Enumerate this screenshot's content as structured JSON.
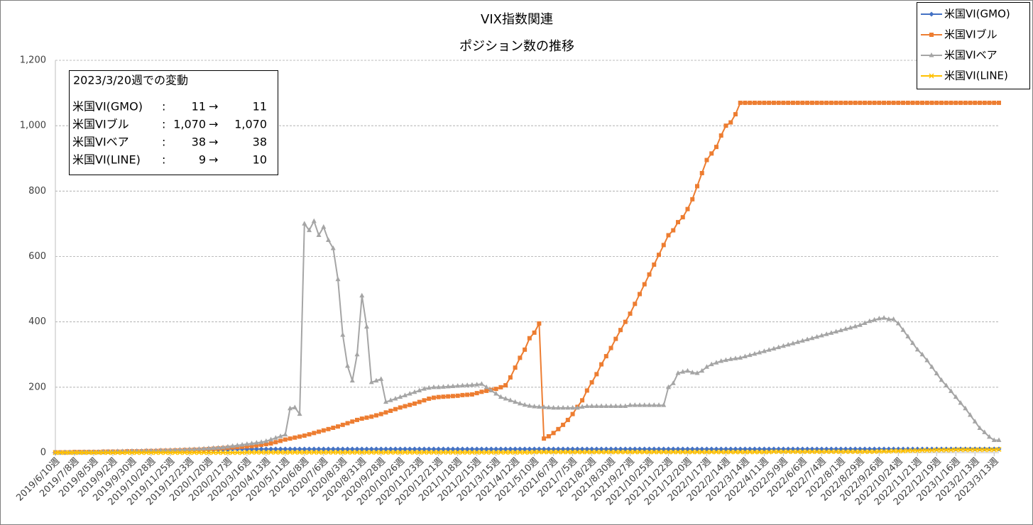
{
  "chart_data": {
    "type": "line",
    "title": "VIX指数関連",
    "subtitle": "ポジション数の推移",
    "categories": [
      "2019/6/10週",
      null,
      null,
      null,
      "2019/7/8週",
      null,
      null,
      null,
      "2019/8/5週",
      null,
      null,
      null,
      "2019/9/2週",
      null,
      null,
      null,
      "2019/9/30週",
      null,
      null,
      null,
      "2019/10/28週",
      null,
      null,
      null,
      "2019/11/25週",
      null,
      null,
      null,
      "2019/12/23週",
      null,
      null,
      null,
      "2020/1/20週",
      null,
      null,
      null,
      "2020/2/17週",
      null,
      null,
      null,
      "2020/3/16週",
      null,
      null,
      null,
      "2020/4/13週",
      null,
      null,
      null,
      "2020/5/11週",
      null,
      null,
      null,
      "2020/6/8週",
      null,
      null,
      null,
      "2020/7/6週",
      null,
      null,
      null,
      "2020/8/3週",
      null,
      null,
      null,
      "2020/8/31週",
      null,
      null,
      null,
      "2020/9/28週",
      null,
      null,
      null,
      "2020/10/26週",
      null,
      null,
      null,
      "2020/11/23週",
      null,
      null,
      null,
      "2020/12/21週",
      null,
      null,
      null,
      "2021/1/18週",
      null,
      null,
      null,
      "2021/2/15週",
      null,
      null,
      null,
      "2021/3/15週",
      null,
      null,
      null,
      "2021/4/12週",
      null,
      null,
      null,
      "2021/5/10週",
      null,
      null,
      null,
      "2021/6/7週",
      null,
      null,
      null,
      "2021/7/5週",
      null,
      null,
      null,
      "2021/8/2週",
      null,
      null,
      null,
      "2021/8/30週",
      null,
      null,
      null,
      "2021/9/27週",
      null,
      null,
      null,
      "2021/10/25週",
      null,
      null,
      null,
      "2021/11/22週",
      null,
      null,
      null,
      "2021/12/20週",
      null,
      null,
      null,
      "2022/1/17週",
      null,
      null,
      null,
      "2022/2/14週",
      null,
      null,
      null,
      "2022/3/14週",
      null,
      null,
      null,
      "2022/4/11週",
      null,
      null,
      null,
      "2022/5/9週",
      null,
      null,
      null,
      "2022/6/6週",
      null,
      null,
      null,
      "2022/7/4週",
      null,
      null,
      null,
      "2022/8/1週",
      null,
      null,
      null,
      "2022/8/29週",
      null,
      null,
      null,
      "2022/9/26週",
      null,
      null,
      null,
      "2022/10/24週",
      null,
      null,
      null,
      "2022/11/21週",
      null,
      null,
      null,
      "2022/12/19週",
      null,
      null,
      null,
      "2023/1/16週",
      null,
      null,
      null,
      "2023/2/13週",
      null,
      null,
      null,
      "2023/3/13週",
      null
    ],
    "series": [
      {
        "name": "米国VI(GMO)",
        "color": "#4472c4",
        "marker": "diamond",
        "values": [
          0,
          0,
          0,
          1,
          1,
          1,
          1,
          2,
          2,
          2,
          2,
          3,
          3,
          3,
          3,
          4,
          4,
          4,
          5,
          5,
          5,
          6,
          6,
          6,
          7,
          7,
          7,
          8,
          8,
          8,
          9,
          9,
          9,
          10,
          10,
          10,
          10,
          11,
          11,
          11,
          11,
          11,
          11,
          11,
          11,
          11,
          11,
          11,
          11,
          11,
          11,
          11,
          11,
          11,
          11,
          11,
          11,
          11,
          11,
          11,
          11,
          11,
          11,
          11,
          11,
          11,
          11,
          11,
          11,
          11,
          11,
          11,
          11,
          11,
          11,
          11,
          11,
          11,
          11,
          11,
          11,
          11,
          11,
          11,
          11,
          11,
          11,
          11,
          11,
          11,
          11,
          11,
          11,
          11,
          11,
          11,
          11,
          11,
          11,
          11,
          11,
          11,
          11,
          11,
          11,
          11,
          11,
          11,
          11,
          11,
          11,
          11,
          11,
          11,
          11,
          11,
          11,
          11,
          11,
          11,
          11,
          11,
          11,
          11,
          11,
          11,
          11,
          11,
          11,
          11,
          11,
          11,
          11,
          11,
          11,
          11,
          11,
          11,
          11,
          11,
          11,
          11,
          11,
          11,
          11,
          11,
          11,
          11,
          11,
          11,
          11,
          11,
          11,
          11,
          11,
          11,
          11,
          11,
          11,
          11,
          11,
          11,
          11,
          11,
          11,
          11,
          11,
          11,
          11,
          11,
          11,
          11,
          11,
          11,
          11,
          11,
          11,
          11,
          11,
          11,
          11,
          11,
          11,
          11,
          11,
          11,
          11,
          11,
          11,
          11,
          11,
          11,
          11,
          11,
          11,
          11,
          11,
          11
        ]
      },
      {
        "name": "米国VIブル",
        "color": "#ed7d31",
        "marker": "square",
        "values": [
          1,
          1,
          1,
          1,
          2,
          2,
          2,
          2,
          2,
          2,
          3,
          3,
          3,
          3,
          3,
          4,
          4,
          4,
          4,
          5,
          5,
          5,
          6,
          6,
          6,
          7,
          7,
          8,
          8,
          9,
          9,
          10,
          11,
          12,
          13,
          14,
          15,
          16,
          17,
          18,
          19,
          20,
          22,
          24,
          26,
          28,
          32,
          36,
          40,
          43,
          46,
          49,
          52,
          56,
          60,
          64,
          68,
          72,
          76,
          80,
          85,
          90,
          95,
          100,
          104,
          107,
          110,
          114,
          118,
          123,
          128,
          133,
          138,
          142,
          146,
          150,
          155,
          160,
          165,
          168,
          170,
          171,
          172,
          173,
          174,
          176,
          177,
          178,
          182,
          186,
          189,
          192,
          195,
          200,
          206,
          230,
          260,
          290,
          315,
          350,
          367,
          395,
          43,
          50,
          60,
          72,
          85,
          100,
          118,
          140,
          160,
          190,
          215,
          240,
          270,
          295,
          320,
          348,
          375,
          400,
          425,
          455,
          485,
          515,
          545,
          575,
          605,
          635,
          665,
          680,
          705,
          720,
          745,
          775,
          815,
          855,
          895,
          915,
          935,
          970,
          1000,
          1010,
          1035,
          1070,
          1070,
          1070,
          1070,
          1070,
          1070,
          1070,
          1070,
          1070,
          1070,
          1070,
          1070,
          1070,
          1070,
          1070,
          1070,
          1070,
          1070,
          1070,
          1070,
          1070,
          1070,
          1070,
          1070,
          1070,
          1070,
          1070,
          1070,
          1070,
          1070,
          1070,
          1070,
          1070,
          1070,
          1070,
          1070,
          1070,
          1070,
          1070,
          1070,
          1070,
          1070,
          1070,
          1070,
          1070,
          1070,
          1070,
          1070,
          1070,
          1070,
          1070,
          1070,
          1070,
          1070,
          1070
        ]
      },
      {
        "name": "米国VIベア",
        "color": "#a5a5a5",
        "marker": "triangle",
        "values": [
          0,
          0,
          1,
          1,
          1,
          1,
          2,
          2,
          2,
          2,
          3,
          3,
          3,
          4,
          4,
          4,
          5,
          5,
          5,
          6,
          6,
          6,
          7,
          7,
          8,
          8,
          9,
          9,
          10,
          10,
          11,
          12,
          13,
          14,
          15,
          16,
          18,
          20,
          22,
          24,
          26,
          28,
          30,
          32,
          35,
          40,
          45,
          50,
          55,
          135,
          138,
          118,
          700,
          680,
          708,
          665,
          690,
          650,
          625,
          530,
          360,
          265,
          220,
          300,
          480,
          385,
          215,
          220,
          225,
          155,
          160,
          165,
          170,
          175,
          180,
          185,
          190,
          195,
          198,
          200,
          200,
          201,
          202,
          203,
          204,
          205,
          206,
          207,
          208,
          210,
          200,
          190,
          180,
          170,
          165,
          160,
          155,
          150,
          146,
          143,
          141,
          140,
          139,
          138,
          137,
          137,
          137,
          137,
          137,
          137,
          140,
          142,
          142,
          142,
          142,
          142,
          142,
          142,
          142,
          142,
          145,
          145,
          145,
          145,
          145,
          145,
          145,
          145,
          200,
          212,
          243,
          247,
          250,
          245,
          243,
          250,
          262,
          270,
          275,
          280,
          283,
          286,
          288,
          290,
          294,
          298,
          302,
          306,
          310,
          314,
          318,
          322,
          326,
          330,
          334,
          338,
          342,
          346,
          350,
          354,
          358,
          362,
          366,
          370,
          374,
          378,
          382,
          386,
          390,
          396,
          402,
          406,
          410,
          412,
          408,
          408,
          395,
          375,
          355,
          335,
          315,
          300,
          282,
          262,
          242,
          222,
          205,
          188,
          170,
          152,
          135,
          115,
          95,
          75,
          62,
          48,
          38,
          38
        ]
      },
      {
        "name": "米国VI(LINE)",
        "color": "#ffc000",
        "marker": "x",
        "values": [
          0,
          0,
          0,
          0,
          0,
          0,
          0,
          0,
          0,
          0,
          0,
          0,
          0,
          0,
          0,
          0,
          0,
          0,
          0,
          0,
          0,
          0,
          0,
          0,
          0,
          0,
          0,
          0,
          0,
          0,
          0,
          0,
          0,
          0,
          0,
          0,
          0,
          0,
          0,
          0,
          1,
          1,
          1,
          1,
          1,
          1,
          1,
          1,
          1,
          1,
          1,
          1,
          1,
          1,
          1,
          1,
          1,
          1,
          1,
          1,
          1,
          1,
          1,
          1,
          1,
          1,
          1,
          1,
          1,
          1,
          1,
          1,
          1,
          1,
          1,
          1,
          1,
          1,
          1,
          1,
          1,
          1,
          1,
          1,
          1,
          1,
          1,
          1,
          1,
          1,
          1,
          1,
          1,
          1,
          1,
          1,
          1,
          1,
          1,
          1,
          2,
          2,
          2,
          2,
          2,
          2,
          2,
          2,
          2,
          2,
          2,
          2,
          2,
          2,
          2,
          2,
          2,
          2,
          2,
          2,
          2,
          2,
          2,
          2,
          2,
          2,
          2,
          2,
          2,
          2,
          2,
          2,
          2,
          2,
          2,
          2,
          2,
          2,
          2,
          2,
          2,
          2,
          2,
          2,
          2,
          2,
          2,
          2,
          2,
          2,
          3,
          3,
          3,
          3,
          3,
          3,
          3,
          3,
          3,
          3,
          3,
          3,
          3,
          3,
          3,
          3,
          3,
          3,
          3,
          3,
          3,
          3,
          4,
          4,
          4,
          5,
          5,
          5,
          6,
          6,
          6,
          7,
          7,
          7,
          8,
          8,
          8,
          8,
          9,
          9,
          9,
          9,
          9,
          9,
          9,
          9,
          9,
          10
        ]
      }
    ],
    "ylim": [
      0,
      1200
    ],
    "yticks": [
      0,
      200,
      400,
      600,
      800,
      {
        "value": 1000,
        "label": "1,000"
      },
      {
        "value": 1200,
        "label": "1,200"
      }
    ],
    "grid": true,
    "legend": "top-right",
    "annotation": {
      "title": "2023/3/20週での変動",
      "separator": ":",
      "arrow": "→",
      "rows": [
        {
          "label": "米国VI(GMO)",
          "from": "11",
          "to": "11"
        },
        {
          "label": "米国VIブル",
          "from": "1,070",
          "to": "1,070"
        },
        {
          "label": "米国VIベア",
          "from": "38",
          "to": "38"
        },
        {
          "label": "米国VI(LINE)",
          "from": "9",
          "to": "10"
        }
      ]
    }
  }
}
